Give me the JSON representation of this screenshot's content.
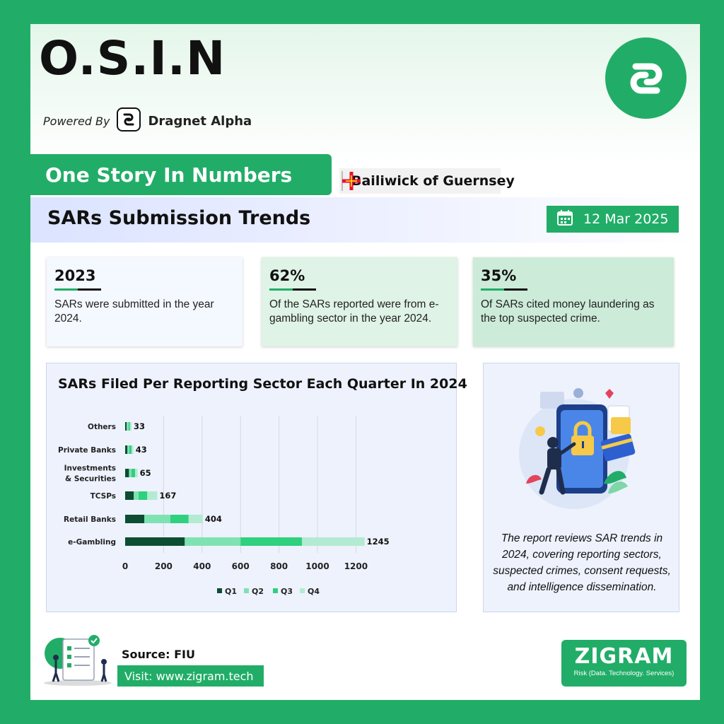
{
  "header": {
    "brand": "O.S.I.N",
    "powered_by": "Powered By",
    "powered_name": "Dragnet Alpha",
    "story_label": "One Story In Numbers",
    "country": "Bailiwick of Guernsey"
  },
  "report": {
    "title": "SARs Submission Trends",
    "date": "12 Mar 2025"
  },
  "stats": [
    {
      "value": "2023",
      "desc": "SARs were submitted in the year 2024.",
      "bg": "#f4f8ff"
    },
    {
      "value": "62%",
      "desc": "Of the SARs reported were from e-gambling sector in the year 2024.",
      "bg": "#dff3e6"
    },
    {
      "value": "35%",
      "desc": "Of SARs cited money laundering as the top suspected crime.",
      "bg": "#ccebd9"
    }
  ],
  "chart_title": "SARs Filed Per Reporting Sector Each Quarter In 2024",
  "chart_data": {
    "type": "bar",
    "orientation": "horizontal",
    "stacked": true,
    "title": "SARs Filed Per Reporting Sector Each Quarter In 2024",
    "categories": [
      "Others",
      "Private Banks",
      "Investments & Securities",
      "TCSPs",
      "Retail Banks",
      "e-Gambling"
    ],
    "category_lines": [
      [
        "Others"
      ],
      [
        "Private Banks"
      ],
      [
        "Investments",
        "& Securities"
      ],
      [
        "TCSPs"
      ],
      [
        "Retail Banks"
      ],
      [
        "e-Gambling"
      ]
    ],
    "series": [
      {
        "name": "Q1",
        "color": "#0d4d33",
        "values": [
          8,
          12,
          20,
          45,
          100,
          310
        ]
      },
      {
        "name": "Q2",
        "color": "#7fe2b2",
        "values": [
          10,
          9,
          12,
          25,
          135,
          290
        ]
      },
      {
        "name": "Q3",
        "color": "#2fd07e",
        "values": [
          7,
          12,
          20,
          45,
          95,
          320
        ]
      },
      {
        "name": "Q4",
        "color": "#b2ebd1",
        "values": [
          8,
          10,
          13,
          52,
          74,
          325
        ]
      }
    ],
    "totals": [
      33,
      43,
      65,
      167,
      404,
      1245
    ],
    "xlim": [
      0,
      1200
    ],
    "xticks": [
      0,
      200,
      400,
      600,
      800,
      1000,
      1200
    ],
    "grid": true,
    "legend": "bottom"
  },
  "illustration": {
    "caption": "The report reviews SAR trends in 2024, covering reporting sectors, suspected crimes, consent requests, and intelligence dissemination."
  },
  "footer": {
    "source": "Source: FIU",
    "visit": "Visit: www.zigram.tech",
    "company": "ZIGRAM",
    "tagline": "Risk (Data. Technology. Services)"
  },
  "colors": {
    "accent": "#21ad67",
    "dark": "#0d4d33"
  }
}
